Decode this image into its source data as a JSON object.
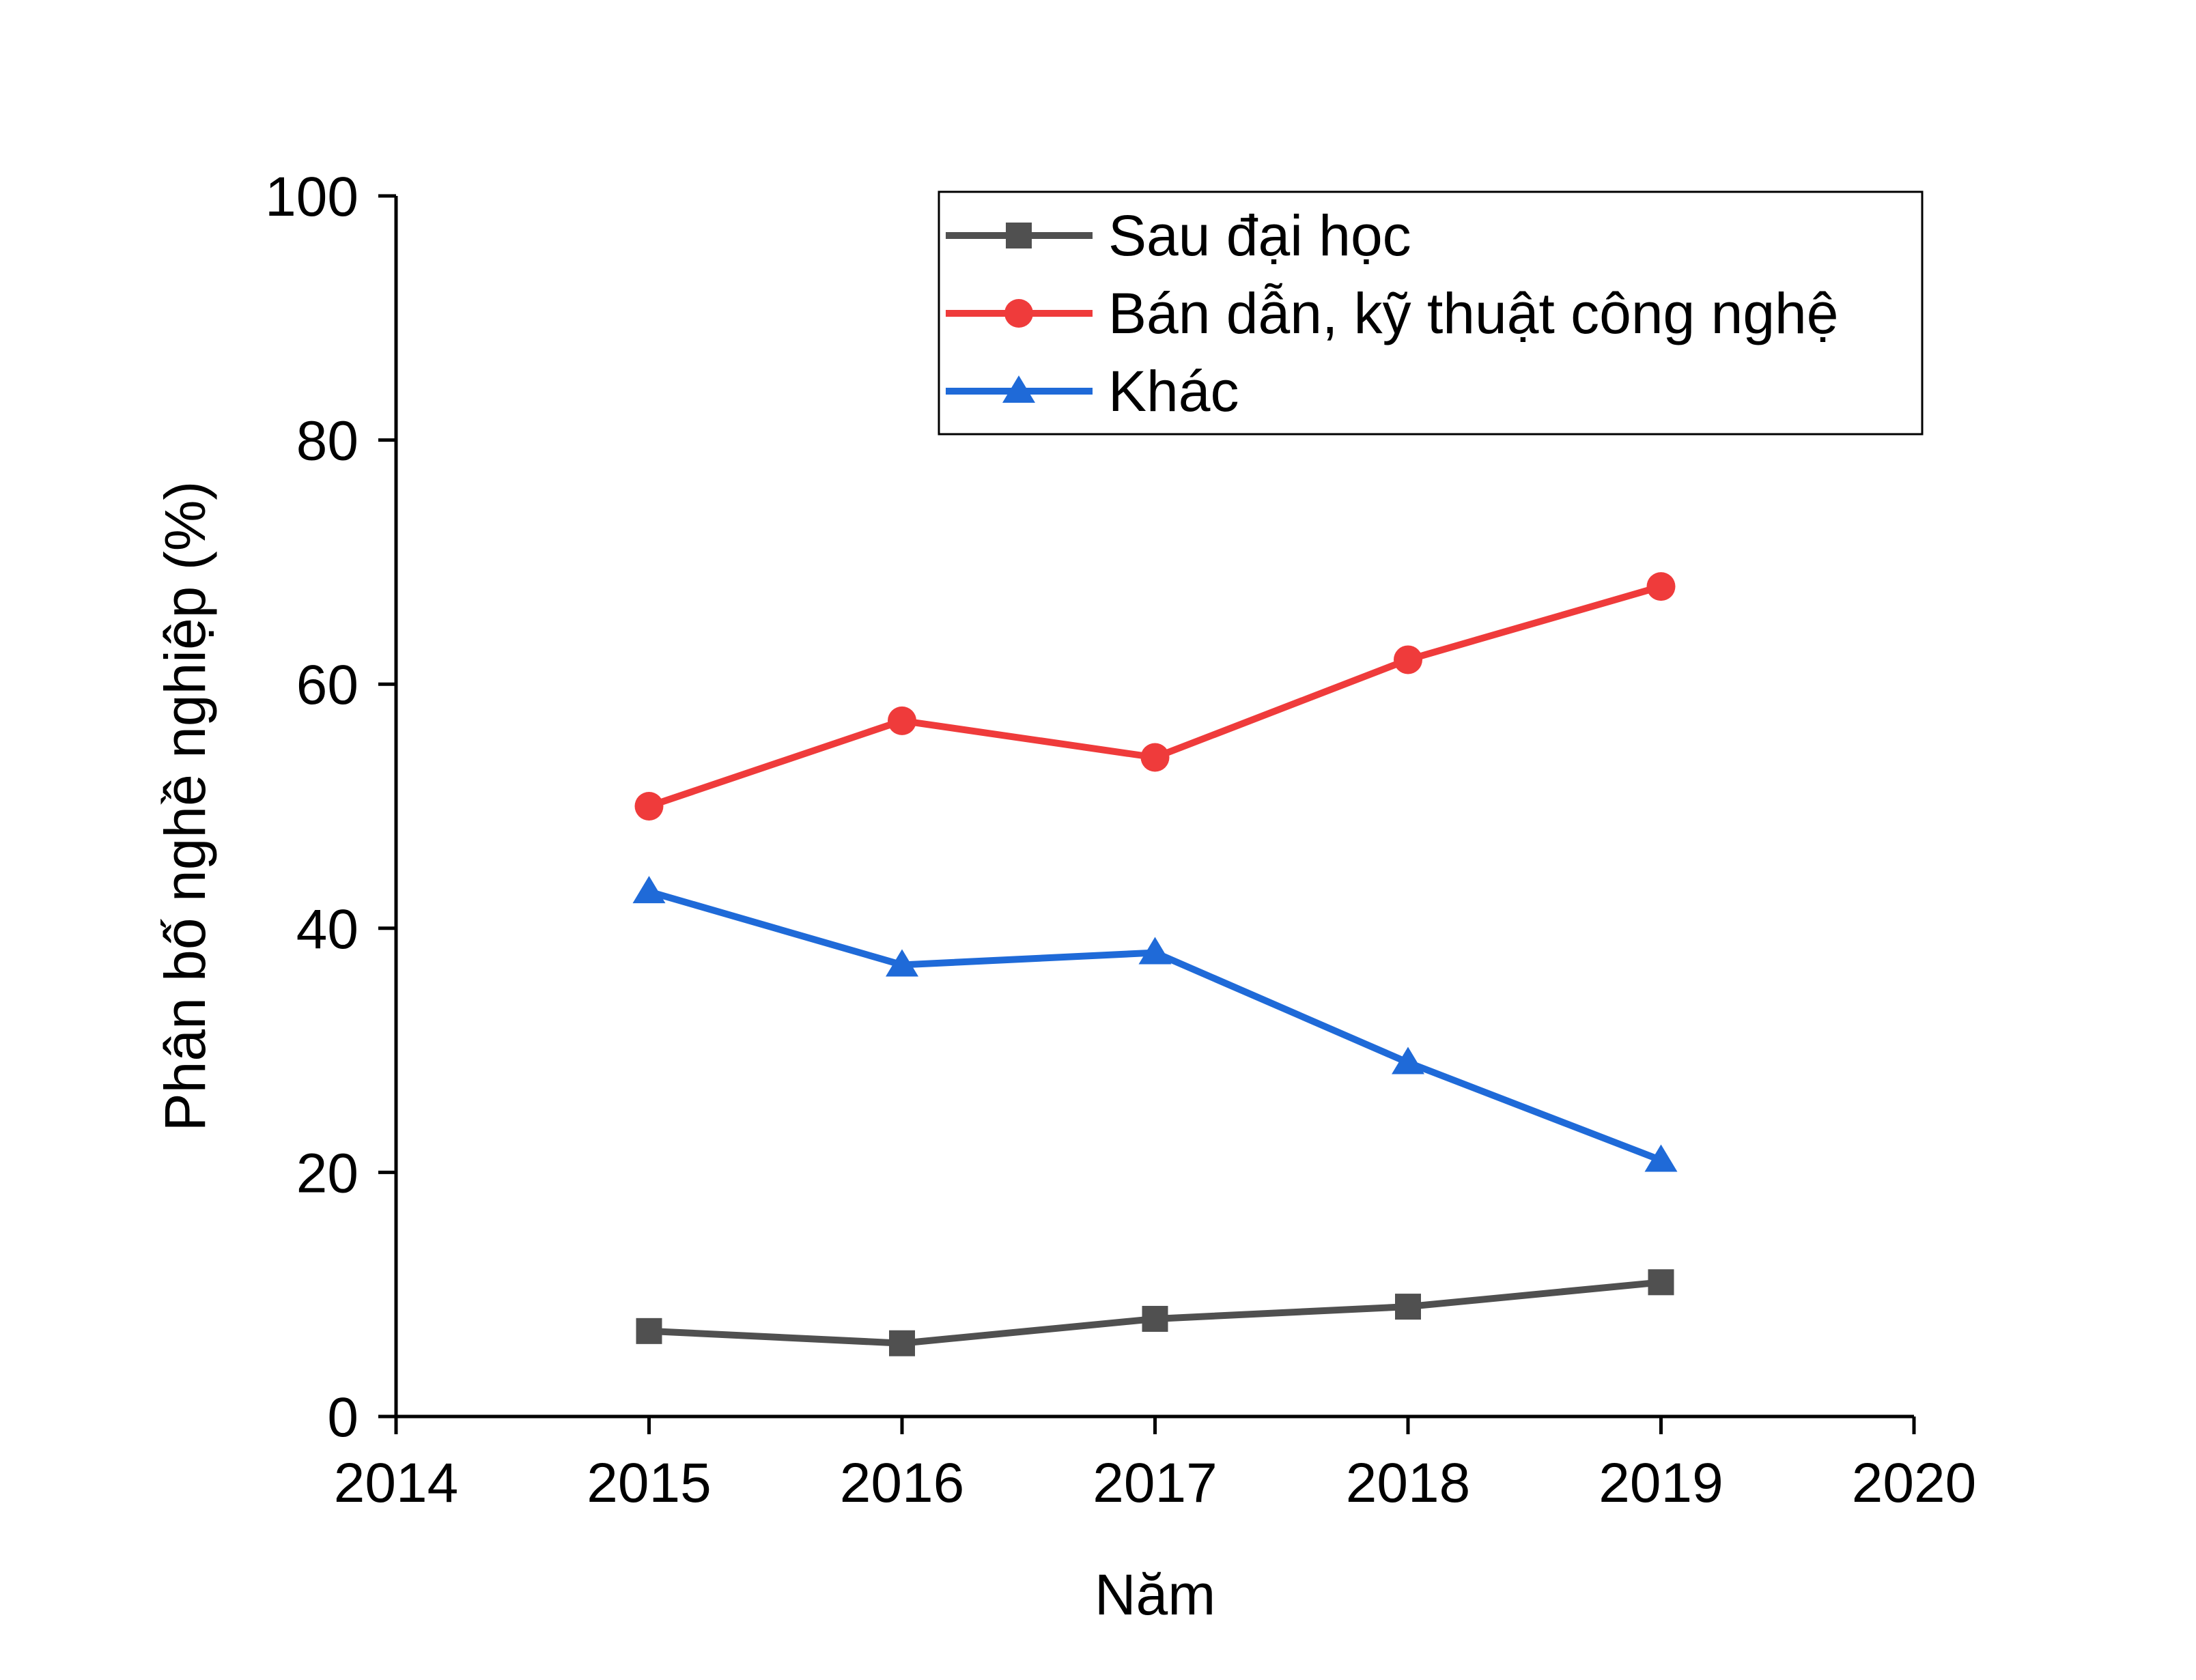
{
  "chart_data": {
    "type": "line",
    "title": "",
    "xlabel": "Năm",
    "ylabel": "Phân bố nghề nghiệp (%)",
    "xlim": [
      2014,
      2020
    ],
    "ylim": [
      0,
      100
    ],
    "x_ticks": [
      2014,
      2015,
      2016,
      2017,
      2018,
      2019,
      2020
    ],
    "y_ticks": [
      0,
      20,
      40,
      60,
      80,
      100
    ],
    "grid": false,
    "legend_position": "top-right",
    "x": [
      2015,
      2016,
      2017,
      2018,
      2019
    ],
    "series": [
      {
        "name": "Sau đại học",
        "values": [
          7,
          6,
          8,
          9,
          11
        ],
        "color": "#505050",
        "marker": "square"
      },
      {
        "name": "Bán dẫn, kỹ thuật công nghệ",
        "values": [
          50,
          57,
          54,
          62,
          68
        ],
        "color": "#ef3b3b",
        "marker": "circle"
      },
      {
        "name": "Khác",
        "values": [
          43,
          37,
          38,
          29,
          21
        ],
        "color": "#1f6ad8",
        "marker": "triangle"
      }
    ]
  }
}
